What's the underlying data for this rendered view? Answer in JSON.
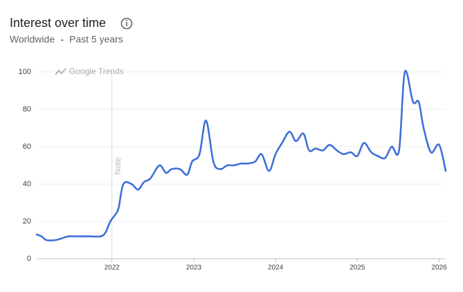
{
  "chart_data": {
    "type": "line",
    "title": "Interest over time",
    "subtitle": [
      "Worldwide",
      "Past 5 years"
    ],
    "watermark": "Google Trends",
    "annotations": [
      {
        "x": 2022,
        "label": "Note"
      }
    ],
    "x": [
      2021.08,
      2021.14,
      2021.2,
      2021.31,
      2021.39,
      2021.47,
      2021.56,
      2021.64,
      2021.73,
      2021.86,
      2021.92,
      2021.98,
      2022.03,
      2022.08,
      2022.14,
      2022.24,
      2022.32,
      2022.39,
      2022.47,
      2022.58,
      2022.66,
      2022.73,
      2022.83,
      2022.92,
      2022.98,
      2023.07,
      2023.15,
      2023.24,
      2023.32,
      2023.41,
      2023.49,
      2023.58,
      2023.66,
      2023.75,
      2023.83,
      2023.92,
      2024.0,
      2024.08,
      2024.17,
      2024.25,
      2024.34,
      2024.41,
      2024.49,
      2024.58,
      2024.66,
      2024.75,
      2024.83,
      2024.92,
      2025.0,
      2025.08,
      2025.17,
      2025.25,
      2025.34,
      2025.42,
      2025.51,
      2025.58,
      2025.68,
      2025.75,
      2025.81,
      2025.9,
      2026.0,
      2026.08
    ],
    "series": [
      {
        "color": "#3f6fd8",
        "values": [
          13,
          12,
          10,
          10,
          11,
          12,
          12,
          12,
          12,
          12,
          14,
          20,
          23,
          27,
          40,
          40,
          37,
          41,
          43,
          50,
          46,
          48,
          48,
          45,
          52,
          56,
          74,
          52,
          48,
          50,
          50,
          51,
          51,
          52,
          56,
          47,
          56,
          62,
          68,
          63,
          67,
          58,
          59,
          58,
          61,
          58,
          56,
          57,
          55,
          62,
          57,
          55,
          54,
          60,
          58,
          100,
          84,
          84,
          70,
          57,
          61,
          47
        ]
      }
    ],
    "xlim": [
      2021.08,
      2026.08
    ],
    "xticks": [
      2022,
      2023,
      2024,
      2025,
      2026
    ],
    "ylim": [
      0,
      100
    ],
    "yticks": [
      0,
      20,
      40,
      60,
      80,
      100
    ],
    "grid": true
  }
}
